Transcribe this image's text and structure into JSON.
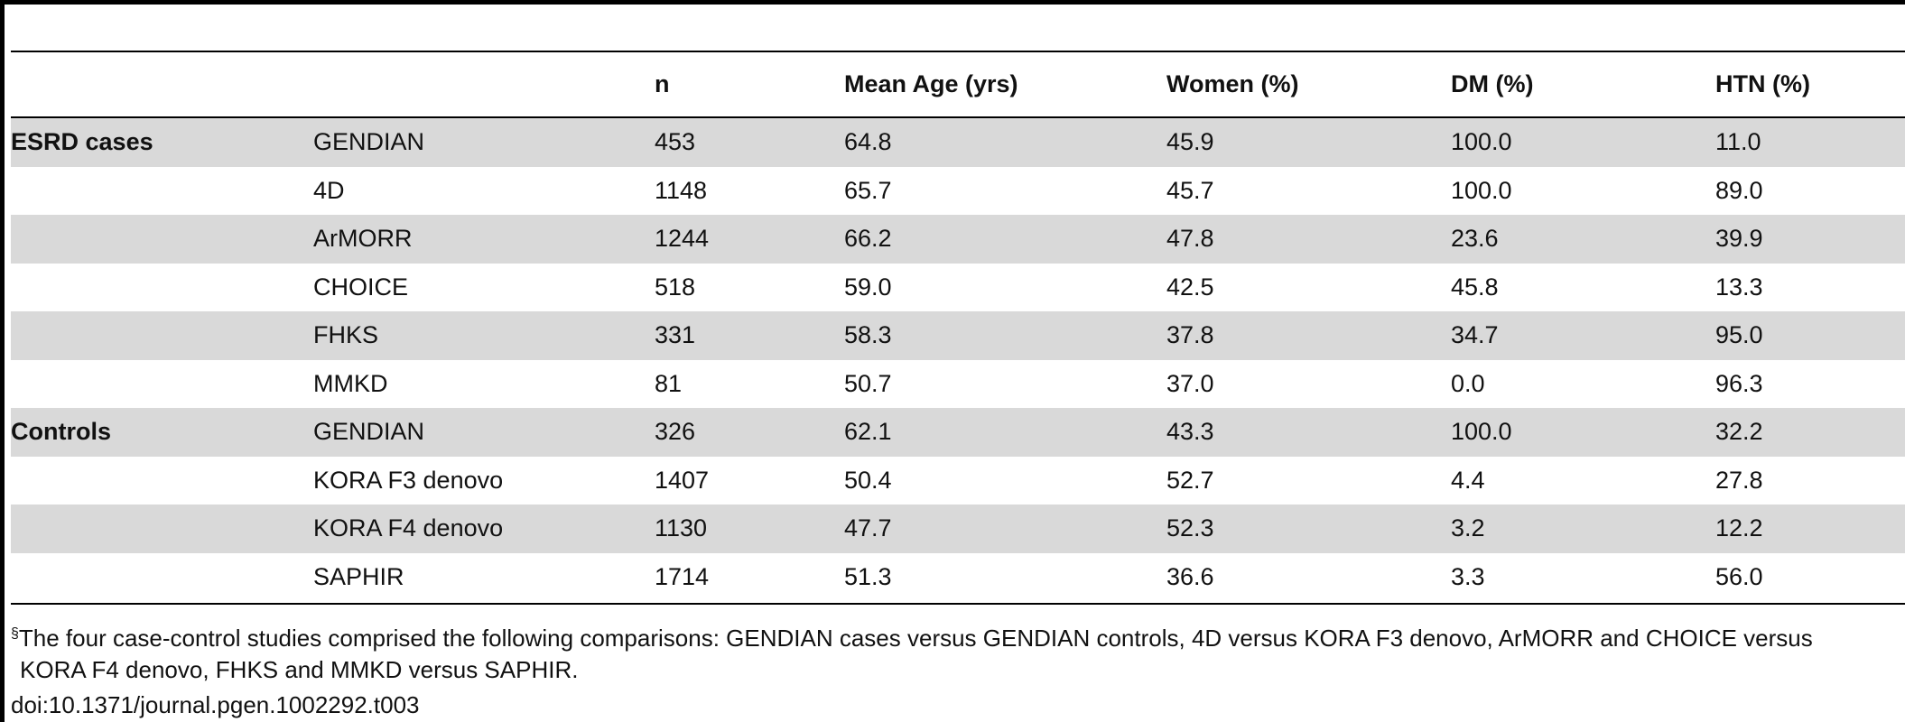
{
  "table": {
    "headers": {
      "group": "",
      "study": "",
      "n": "n",
      "mean_age": "Mean Age (yrs)",
      "women": "Women (%)",
      "dm": "DM (%)",
      "htn": "HTN (%)"
    },
    "rows": [
      {
        "group": "ESRD cases",
        "study": "GENDIAN",
        "n": "453",
        "mean_age": "64.8",
        "women": "45.9",
        "dm": "100.0",
        "htn": "11.0"
      },
      {
        "group": "",
        "study": "4D",
        "n": "1148",
        "mean_age": "65.7",
        "women": "45.7",
        "dm": "100.0",
        "htn": "89.0"
      },
      {
        "group": "",
        "study": "ArMORR",
        "n": "1244",
        "mean_age": "66.2",
        "women": "47.8",
        "dm": "23.6",
        "htn": "39.9"
      },
      {
        "group": "",
        "study": "CHOICE",
        "n": "518",
        "mean_age": "59.0",
        "women": "42.5",
        "dm": "45.8",
        "htn": "13.3"
      },
      {
        "group": "",
        "study": "FHKS",
        "n": "331",
        "mean_age": "58.3",
        "women": "37.8",
        "dm": "34.7",
        "htn": "95.0"
      },
      {
        "group": "",
        "study": "MMKD",
        "n": "81",
        "mean_age": "50.7",
        "women": "37.0",
        "dm": "0.0",
        "htn": "96.3"
      },
      {
        "group": "Controls",
        "study": "GENDIAN",
        "n": "326",
        "mean_age": "62.1",
        "women": "43.3",
        "dm": "100.0",
        "htn": "32.2"
      },
      {
        "group": "",
        "study": "KORA F3 denovo",
        "n": "1407",
        "mean_age": "50.4",
        "women": "52.7",
        "dm": "4.4",
        "htn": "27.8"
      },
      {
        "group": "",
        "study": "KORA F4 denovo",
        "n": "1130",
        "mean_age": "47.7",
        "women": "52.3",
        "dm": "3.2",
        "htn": "12.2"
      },
      {
        "group": "",
        "study": "SAPHIR",
        "n": "1714",
        "mean_age": "51.3",
        "women": "36.6",
        "dm": "3.3",
        "htn": "56.0"
      }
    ]
  },
  "footnote": {
    "marker": "§",
    "line1": "The four case-control studies comprised the following comparisons: GENDIAN cases versus GENDIAN controls, 4D versus KORA F3 denovo, ArMORR and CHOICE versus",
    "line2": "KORA F4 denovo, FHKS and MMKD versus SAPHIR."
  },
  "doi": "doi:10.1371/journal.pgen.1002292.t003",
  "colors": {
    "shade": "#d9d9d9",
    "rule": "#000000",
    "text": "#111111"
  }
}
